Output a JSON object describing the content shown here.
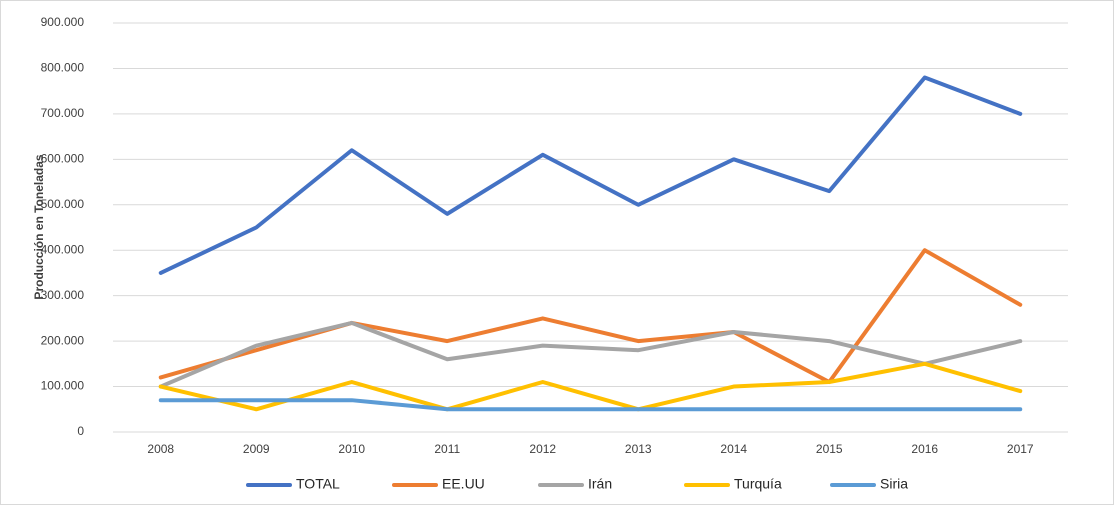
{
  "chart_data": {
    "type": "line",
    "y_label": "Producción en Toneladas",
    "categories": [
      "2008",
      "2009",
      "2010",
      "2011",
      "2012",
      "2013",
      "2014",
      "2015",
      "2016",
      "2017"
    ],
    "series": [
      {
        "name": "TOTAL",
        "color": "#4472c4",
        "values": [
          350000,
          450000,
          620000,
          480000,
          610000,
          500000,
          600000,
          530000,
          780000,
          700000
        ]
      },
      {
        "name": "EE.UU",
        "color": "#ed7d31",
        "values": [
          120000,
          180000,
          240000,
          200000,
          250000,
          200000,
          220000,
          110000,
          400000,
          280000
        ]
      },
      {
        "name": "Irán",
        "color": "#a5a5a5",
        "values": [
          100000,
          190000,
          240000,
          160000,
          190000,
          180000,
          220000,
          200000,
          150000,
          200000
        ]
      },
      {
        "name": "Turquía",
        "color": "#ffc000",
        "values": [
          100000,
          50000,
          110000,
          50000,
          110000,
          50000,
          100000,
          110000,
          150000,
          90000
        ]
      },
      {
        "name": "Siria",
        "color": "#5b9bd5",
        "values": [
          70000,
          70000,
          70000,
          50000,
          50000,
          50000,
          50000,
          50000,
          50000,
          50000
        ]
      }
    ],
    "ylim": [
      0,
      900000
    ],
    "yticks": [
      0,
      {
        "value": 100000,
        "label": "100.000"
      },
      {
        "value": 200000,
        "label": "200.000"
      },
      {
        "value": 300000,
        "label": "300.000"
      },
      {
        "value": 400000,
        "label": "400.000"
      },
      {
        "value": 500000,
        "label": "500.000"
      },
      {
        "value": 600000,
        "label": "600.000"
      },
      {
        "value": 700000,
        "label": "700.000"
      },
      {
        "value": 800000,
        "label": "800.000"
      },
      {
        "value": 900000,
        "label": "900.000"
      }
    ],
    "grid": true,
    "legend": "bottom"
  }
}
